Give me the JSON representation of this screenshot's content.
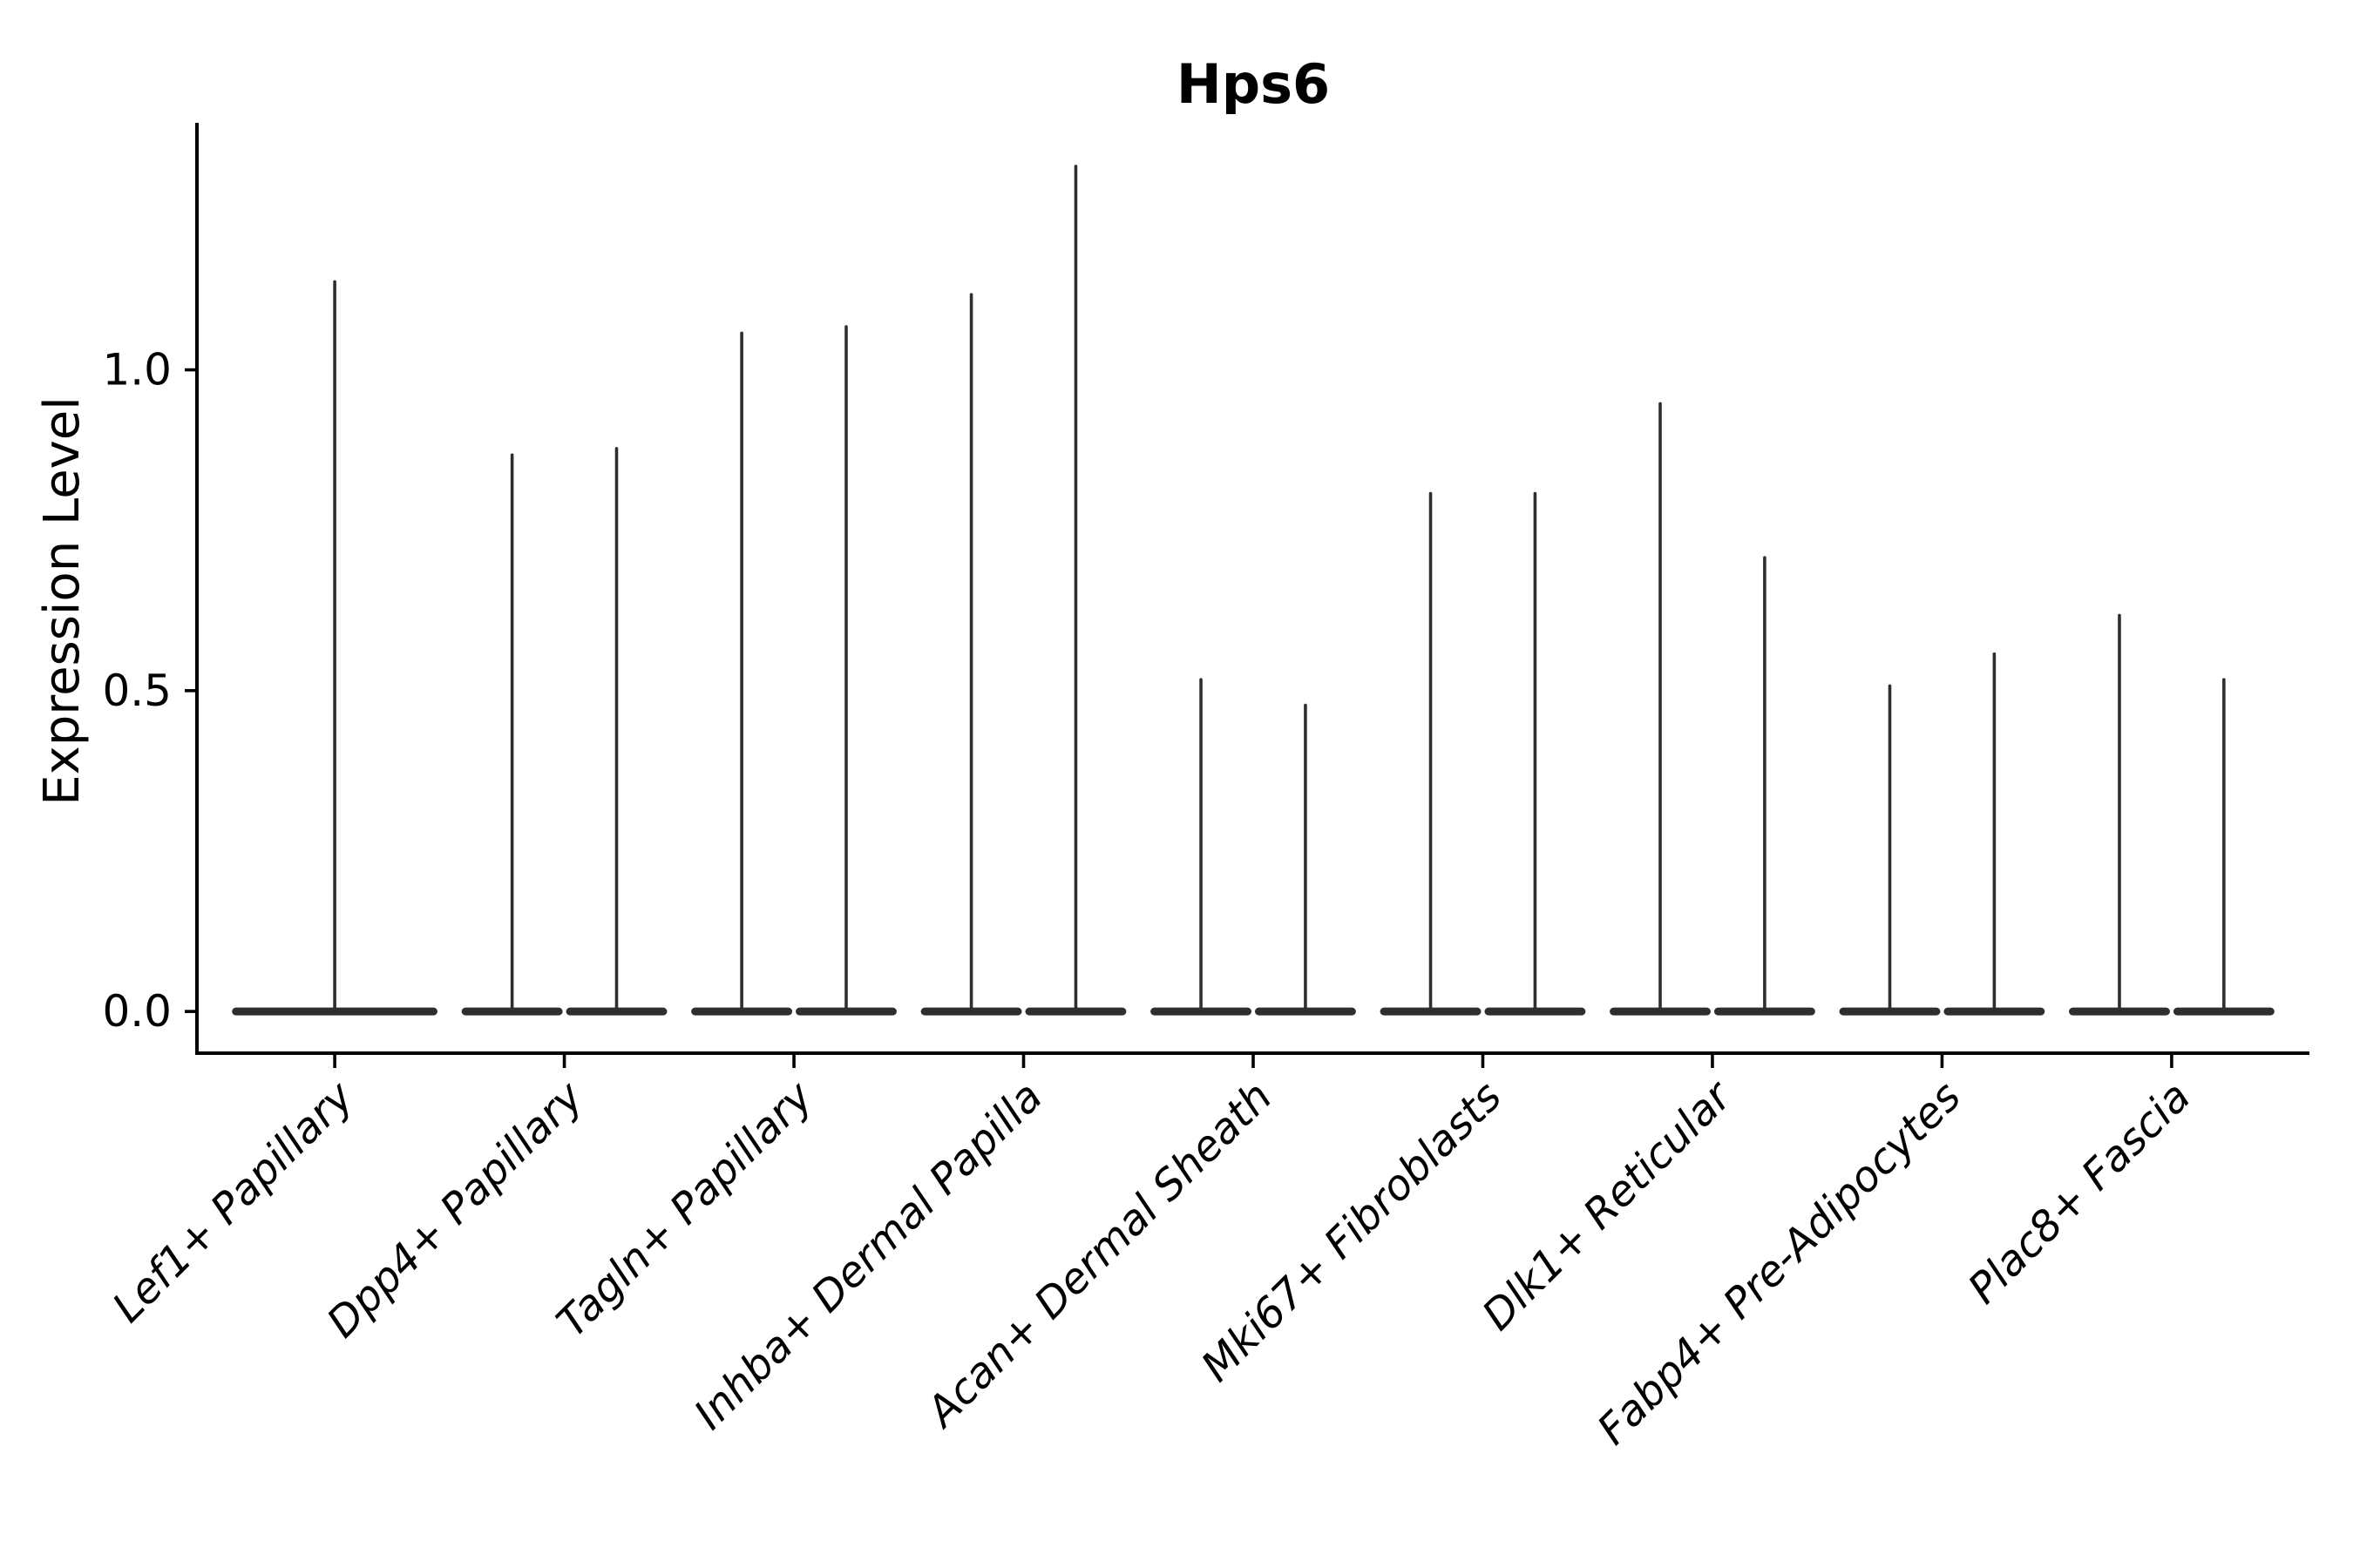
{
  "chart_data": {
    "type": "violin",
    "title": "Hps6",
    "ylabel": "Expression Level",
    "xlabel": "",
    "ytick_labels": [
      "0.0",
      "0.5",
      "1.0"
    ],
    "ytick_values": [
      0.0,
      0.5,
      1.0
    ],
    "ylim": [
      -0.065,
      1.385
    ],
    "grid": false,
    "legend_position": "none",
    "violin_fill": "#2e2e2e",
    "axis_color": "#000000",
    "background": "#ffffff",
    "categories": [
      "Lef1+ Papillary",
      "Dpp4+ Papillary",
      "Tagln+ Papillary",
      "Inhba+ Dermal Papilla",
      "Acan+ Dermal Sheath",
      "Mki67+ Fibroblasts",
      "Dlk1+ Reticular",
      "Fabp4+ Pre-Adipocytes",
      "Plac8+ Fascia"
    ],
    "violins": [
      {
        "category": "Lef1+ Papillary",
        "layout": "single",
        "spike_maxima": [
          1.14
        ]
      },
      {
        "category": "Dpp4+ Papillary",
        "layout": "pair",
        "spike_maxima": [
          0.87,
          0.88
        ]
      },
      {
        "category": "Tagln+ Papillary",
        "layout": "pair",
        "spike_maxima": [
          1.06,
          1.07
        ]
      },
      {
        "category": "Inhba+ Dermal Papilla",
        "layout": "pair",
        "spike_maxima": [
          1.12,
          1.32
        ]
      },
      {
        "category": "Acan+ Dermal Sheath",
        "layout": "pair",
        "spike_maxima": [
          0.52,
          0.48
        ]
      },
      {
        "category": "Mki67+ Fibroblasts",
        "layout": "pair",
        "spike_maxima": [
          0.81,
          0.81
        ]
      },
      {
        "category": "Dlk1+ Reticular",
        "layout": "pair",
        "spike_maxima": [
          0.95,
          0.71
        ]
      },
      {
        "category": "Fabp4+ Pre-Adipocytes",
        "layout": "pair",
        "spike_maxima": [
          0.51,
          0.56
        ]
      },
      {
        "category": "Plac8+ Fascia",
        "layout": "pair",
        "spike_maxima": [
          0.62,
          0.52
        ]
      }
    ]
  }
}
